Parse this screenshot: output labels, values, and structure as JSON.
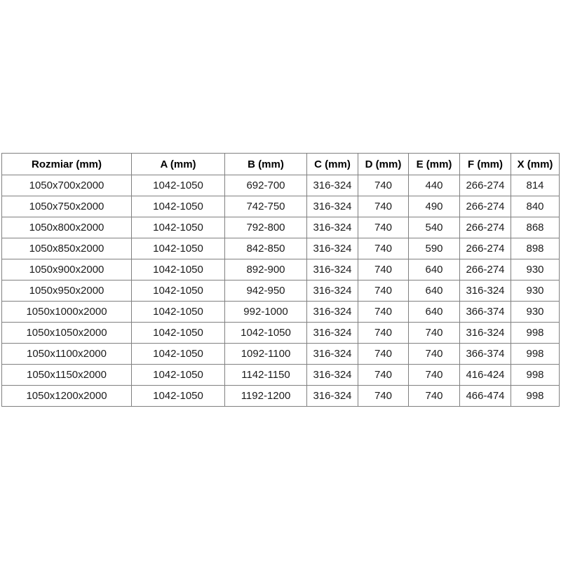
{
  "colors": {
    "background": "#ffffff",
    "border": "#808080",
    "cell_text": "#1c1c1c",
    "header_text": "#000000"
  },
  "chart_data": {
    "type": "table",
    "title": "",
    "columns": [
      "Rozmiar (mm)",
      "A (mm)",
      "B (mm)",
      "C (mm)",
      "D (mm)",
      "E (mm)",
      "F (mm)",
      "X (mm)"
    ],
    "rows": [
      [
        "1050x700x2000",
        "1042-1050",
        "692-700",
        "316-324",
        "740",
        "440",
        "266-274",
        "814"
      ],
      [
        "1050x750x2000",
        "1042-1050",
        "742-750",
        "316-324",
        "740",
        "490",
        "266-274",
        "840"
      ],
      [
        "1050x800x2000",
        "1042-1050",
        "792-800",
        "316-324",
        "740",
        "540",
        "266-274",
        "868"
      ],
      [
        "1050x850x2000",
        "1042-1050",
        "842-850",
        "316-324",
        "740",
        "590",
        "266-274",
        "898"
      ],
      [
        "1050x900x2000",
        "1042-1050",
        "892-900",
        "316-324",
        "740",
        "640",
        "266-274",
        "930"
      ],
      [
        "1050x950x2000",
        "1042-1050",
        "942-950",
        "316-324",
        "740",
        "640",
        "316-324",
        "930"
      ],
      [
        "1050x1000x2000",
        "1042-1050",
        "992-1000",
        "316-324",
        "740",
        "640",
        "366-374",
        "930"
      ],
      [
        "1050x1050x2000",
        "1042-1050",
        "1042-1050",
        "316-324",
        "740",
        "740",
        "316-324",
        "998"
      ],
      [
        "1050x1100x2000",
        "1042-1050",
        "1092-1100",
        "316-324",
        "740",
        "740",
        "366-374",
        "998"
      ],
      [
        "1050x1150x2000",
        "1042-1050",
        "1142-1150",
        "316-324",
        "740",
        "740",
        "416-424",
        "998"
      ],
      [
        "1050x1200x2000",
        "1042-1050",
        "1192-1200",
        "316-324",
        "740",
        "740",
        "466-474",
        "998"
      ]
    ]
  }
}
